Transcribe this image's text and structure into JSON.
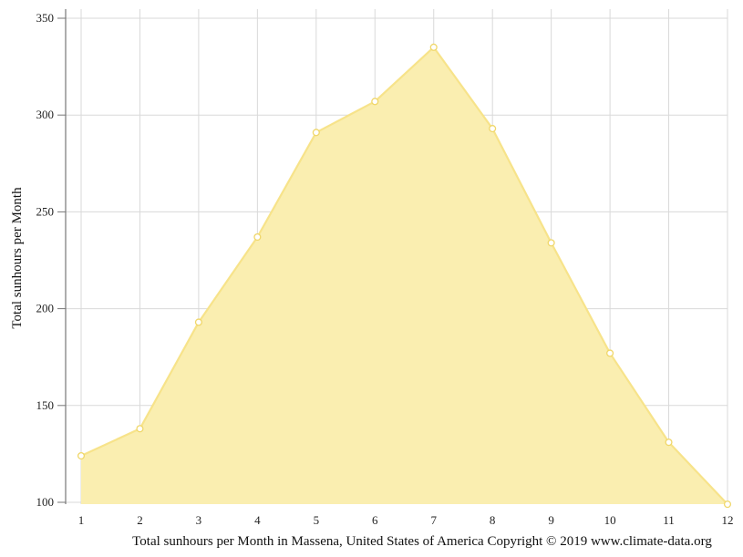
{
  "chart_data": {
    "type": "area",
    "x": [
      1,
      2,
      3,
      4,
      5,
      6,
      7,
      8,
      9,
      10,
      11,
      12
    ],
    "series": [
      {
        "values": [
          124,
          138,
          193,
          237,
          291,
          307,
          335,
          293,
          234,
          177,
          131,
          99
        ]
      }
    ],
    "xlabel": "Total sunhours per Month in Massena, United States of America Copyright © 2019 www.climate-data.org",
    "ylabel": "Total sunhours per Month",
    "xticks": [
      "1",
      "2",
      "3",
      "4",
      "5",
      "6",
      "7",
      "8",
      "9",
      "10",
      "11",
      "12"
    ],
    "yticks": [
      "100",
      "150",
      "200",
      "250",
      "300",
      "350"
    ],
    "ylim": [
      100,
      350
    ],
    "grid": true,
    "colors": {
      "fill": "#faeeb0",
      "line": "#f7e38a",
      "point_stroke": "#f0d76a"
    }
  }
}
